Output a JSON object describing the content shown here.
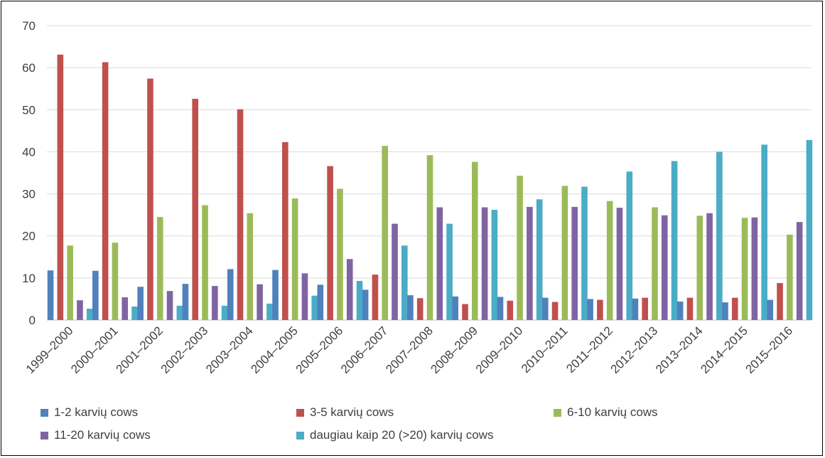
{
  "chart_data": {
    "type": "bar",
    "categories": [
      "1999–2000",
      "2000–2001",
      "2001–2002",
      "2002–2003",
      "2003–2004",
      "2004–2005",
      "2005–2006",
      "2006–2007",
      "2007–2008",
      "2008–2009",
      "2009–2010",
      "2010–2011",
      "2011–2012",
      "2012–2013",
      "2013–2014",
      "2014–2015",
      "2015–2016"
    ],
    "series": [
      {
        "name": "1-2 karvių cows",
        "color": "#4f81bd",
        "values": [
          11.8,
          11.7,
          7.9,
          8.6,
          12.1,
          11.9,
          8.4,
          7.2,
          5.9,
          5.6,
          5.5,
          5.3,
          5.0,
          5.1,
          4.4,
          4.2,
          4.8
        ]
      },
      {
        "name": "3-5 karvių cows",
        "color": "#c0504d",
        "values": [
          63.1,
          61.3,
          57.4,
          52.6,
          50.1,
          42.3,
          36.6,
          10.8,
          5.2,
          3.8,
          4.6,
          4.3,
          4.8,
          5.3,
          5.3,
          5.3,
          8.8
        ]
      },
      {
        "name": "6-10 karvių cows",
        "color": "#9bbb59",
        "values": [
          17.7,
          18.4,
          24.5,
          27.3,
          25.4,
          28.9,
          31.2,
          41.4,
          39.2,
          37.6,
          34.3,
          31.9,
          28.3,
          26.8,
          24.8,
          24.3,
          20.3
        ]
      },
      {
        "name": "11-20 karvių cows",
        "color": "#8064a2",
        "values": [
          4.7,
          5.4,
          6.9,
          8.1,
          8.5,
          11.1,
          14.5,
          22.9,
          26.8,
          26.8,
          26.9,
          26.9,
          26.7,
          24.9,
          25.4,
          24.4,
          23.3
        ]
      },
      {
        "name": "daugiau kaip 20 (>20) karvių cows",
        "color": "#4bacc6",
        "values": [
          2.7,
          3.2,
          3.4,
          3.4,
          3.9,
          5.8,
          9.3,
          17.7,
          22.9,
          26.2,
          28.7,
          31.7,
          35.3,
          37.8,
          40.0,
          41.7,
          42.8
        ]
      }
    ],
    "ylim": [
      0,
      70
    ],
    "yticks": [
      0,
      10,
      20,
      30,
      40,
      50,
      60,
      70
    ],
    "ytick_labels": [
      "0",
      "10",
      "20",
      "30",
      "40",
      "50",
      "60",
      "70"
    ],
    "grid": true,
    "legend_position": "bottom",
    "title": "",
    "xlabel": "",
    "ylabel": ""
  }
}
